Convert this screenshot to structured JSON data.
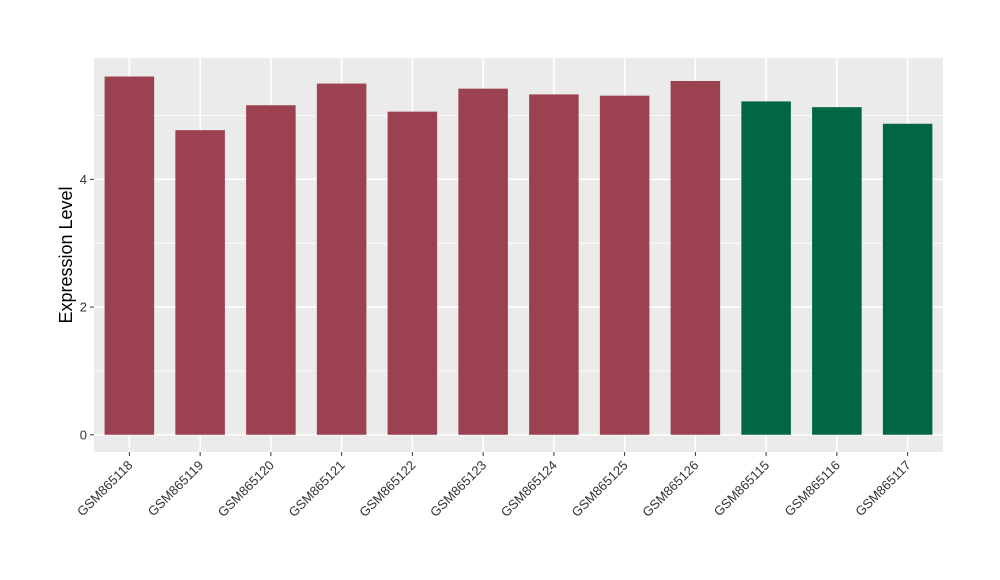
{
  "chart_data": {
    "type": "bar",
    "title": "",
    "xlabel": "",
    "ylabel": "Expression Level",
    "categories": [
      "GSM865118",
      "GSM865119",
      "GSM865120",
      "GSM865121",
      "GSM865122",
      "GSM865123",
      "GSM865124",
      "GSM865125",
      "GSM865126",
      "GSM865115",
      "GSM865116",
      "GSM865117"
    ],
    "values": [
      5.61,
      4.77,
      5.16,
      5.5,
      5.06,
      5.42,
      5.33,
      5.31,
      5.54,
      5.22,
      5.13,
      4.87
    ],
    "bar_colors": [
      "#9b4150",
      "#9b4150",
      "#9b4150",
      "#9b4150",
      "#9b4150",
      "#9b4150",
      "#9b4150",
      "#9b4150",
      "#9b4150",
      "#006644",
      "#006644",
      "#006644"
    ],
    "yticks": [
      0,
      2,
      4
    ],
    "ylim": [
      -0.27,
      5.9
    ],
    "grid": true,
    "panel_background": "#ebebeb",
    "grid_color": "#ffffff",
    "legend": "none"
  }
}
